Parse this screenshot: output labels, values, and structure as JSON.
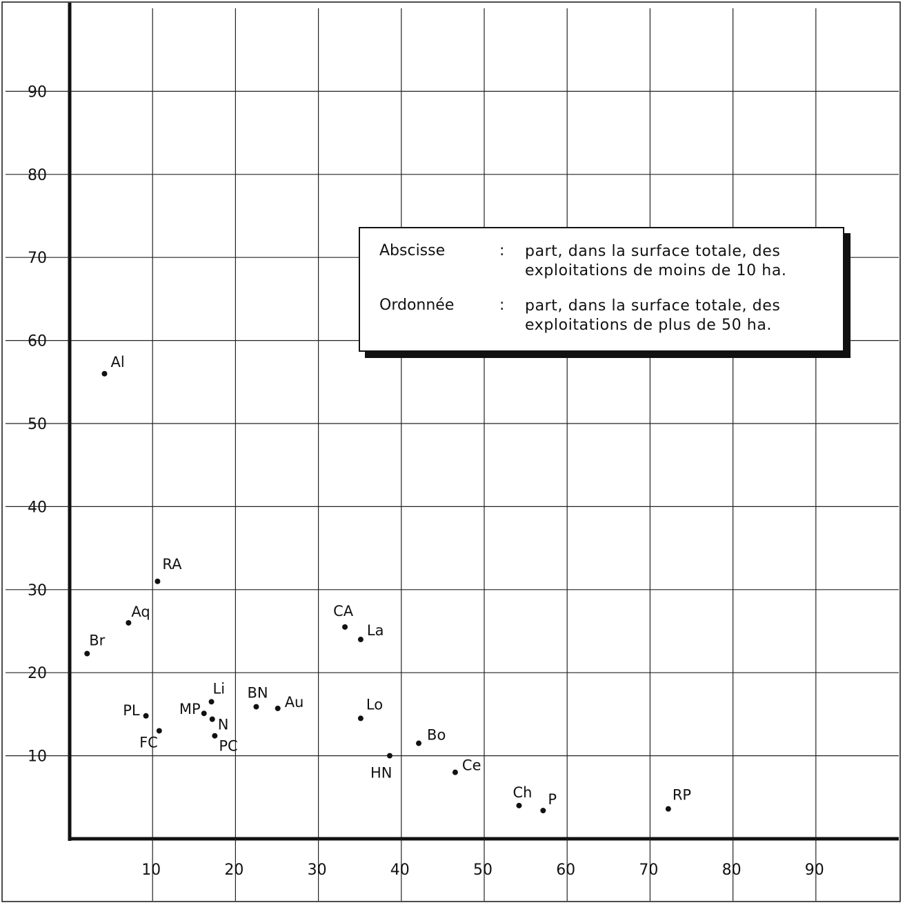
{
  "chart_data": {
    "type": "scatter",
    "xlim": [
      0,
      100
    ],
    "ylim": [
      0,
      100
    ],
    "x_ticks": [
      10,
      20,
      30,
      40,
      50,
      60,
      70,
      80,
      90
    ],
    "y_ticks": [
      10,
      20,
      30,
      40,
      50,
      60,
      70,
      80,
      90
    ],
    "grid": true,
    "legend_placement": "upper-right",
    "points": [
      {
        "label": "Al",
        "x": 4.2,
        "y": 56
      },
      {
        "label": "RA",
        "x": 10.6,
        "y": 31
      },
      {
        "label": "Aq",
        "x": 7.1,
        "y": 26
      },
      {
        "label": "Br",
        "x": 2.1,
        "y": 22.3
      },
      {
        "label": "PL",
        "x": 9.2,
        "y": 14.8
      },
      {
        "label": "FC",
        "x": 10.8,
        "y": 13
      },
      {
        "label": "MP",
        "x": 16.2,
        "y": 15.1
      },
      {
        "label": "Li",
        "x": 17.1,
        "y": 16.5
      },
      {
        "label": "N",
        "x": 17.2,
        "y": 14.4
      },
      {
        "label": "PC",
        "x": 17.5,
        "y": 12.4
      },
      {
        "label": "BN",
        "x": 22.5,
        "y": 15.9
      },
      {
        "label": "Au",
        "x": 25.1,
        "y": 15.7
      },
      {
        "label": "CA",
        "x": 33.2,
        "y": 25.5
      },
      {
        "label": "La",
        "x": 35.1,
        "y": 24
      },
      {
        "label": "Lo",
        "x": 35.1,
        "y": 14.5
      },
      {
        "label": "HN",
        "x": 38.6,
        "y": 10
      },
      {
        "label": "Bo",
        "x": 42.1,
        "y": 11.5
      },
      {
        "label": "Ce",
        "x": 46.5,
        "y": 8
      },
      {
        "label": "Ch",
        "x": 54.2,
        "y": 4
      },
      {
        "label": "P",
        "x": 57.1,
        "y": 3.4
      },
      {
        "label": "RP",
        "x": 72.2,
        "y": 3.6
      }
    ],
    "legend": {
      "rows": [
        {
          "term": "Abscisse",
          "colon": ":",
          "text": "part, dans la surface totale, des exploitations de moins de 10 ha."
        },
        {
          "term": "Ordonnée",
          "colon": ":",
          "text": "part, dans la surface totale, des exploitations de plus de 50 ha."
        }
      ]
    }
  }
}
